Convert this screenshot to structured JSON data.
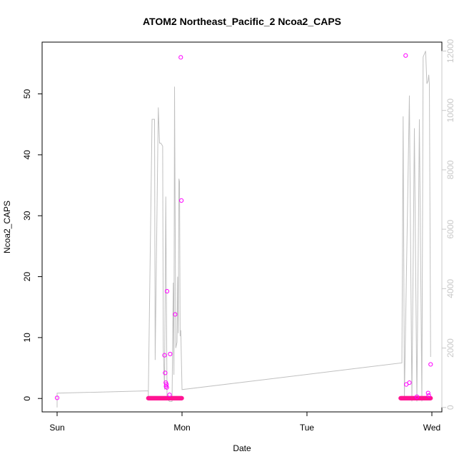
{
  "chart_data": {
    "type": "scatter",
    "title": "ATOM2 Northeast_Pacific_2 Ncoa2_CAPS",
    "xlabel": "Date",
    "ylabel": "Ncoa2_CAPS",
    "x_ticks": [
      "Sun",
      "Mon",
      "Tue",
      "Wed"
    ],
    "y_ticks": [
      0,
      10,
      20,
      30,
      40,
      50
    ],
    "y2_ticks": [
      0,
      2000,
      4000,
      6000,
      8000,
      10000,
      12000
    ],
    "xlim": [
      -0.12,
      3.08
    ],
    "ylim": [
      -2.2,
      58.5
    ],
    "y2lim": [
      -150,
      12300
    ],
    "grid": false,
    "colors": {
      "points": "#ff00ff",
      "points_dense": "#ff1493",
      "line": "#c0c0c0",
      "right_axis": "#c8c8c8"
    },
    "series": [
      {
        "kind": "scatter",
        "x_units": "days since Sunday",
        "points": [
          [
            0.0,
            0.1
          ],
          [
            0.86,
            7.1
          ],
          [
            0.865,
            4.2
          ],
          [
            0.87,
            2.6
          ],
          [
            0.872,
            2.0
          ],
          [
            0.875,
            2.3
          ],
          [
            0.878,
            1.8
          ],
          [
            0.88,
            17.6
          ],
          [
            0.9,
            0.6
          ],
          [
            0.905,
            7.3
          ],
          [
            0.945,
            13.8
          ],
          [
            0.99,
            56.0
          ],
          [
            0.995,
            32.5
          ],
          [
            2.79,
            56.3
          ],
          [
            2.795,
            2.3
          ],
          [
            2.82,
            2.6
          ],
          [
            2.88,
            0.3
          ],
          [
            2.97,
            0.9
          ],
          [
            2.975,
            0.5
          ],
          [
            2.99,
            5.6
          ]
        ],
        "baseline_runs": [
          [
            0.73,
            1.0
          ],
          [
            2.75,
            2.99
          ]
        ]
      },
      {
        "kind": "line",
        "axis": "right",
        "points": [
          [
            0.0,
            0.0
          ],
          [
            0.0,
            480
          ],
          [
            0.73,
            560
          ],
          [
            0.73,
            380
          ],
          [
            0.76,
            9700
          ],
          [
            0.78,
            9700
          ],
          [
            0.785,
            1600
          ],
          [
            0.81,
            10100
          ],
          [
            0.82,
            8900
          ],
          [
            0.83,
            8900
          ],
          [
            0.845,
            8800
          ],
          [
            0.85,
            2000
          ],
          [
            0.86,
            600
          ],
          [
            0.87,
            7100
          ],
          [
            0.88,
            300
          ],
          [
            0.9,
            200
          ],
          [
            0.92,
            200
          ],
          [
            0.93,
            4200
          ],
          [
            0.935,
            1100
          ],
          [
            0.94,
            10800
          ],
          [
            0.95,
            2000
          ],
          [
            0.96,
            2200
          ],
          [
            0.965,
            4400
          ],
          [
            0.97,
            2500
          ],
          [
            0.975,
            7700
          ],
          [
            0.98,
            7600
          ],
          [
            0.985,
            2400
          ],
          [
            0.99,
            2600
          ],
          [
            1.0,
            600
          ],
          [
            2.76,
            1500
          ],
          [
            2.77,
            9800
          ],
          [
            2.78,
            300
          ],
          [
            2.82,
            10500
          ],
          [
            2.84,
            200
          ],
          [
            2.86,
            9400
          ],
          [
            2.88,
            200
          ],
          [
            2.9,
            9700
          ],
          [
            2.92,
            200
          ],
          [
            2.93,
            11800
          ],
          [
            2.95,
            12000
          ],
          [
            2.96,
            10900
          ],
          [
            2.97,
            11000
          ],
          [
            2.975,
            11200
          ],
          [
            2.98,
            10900
          ],
          [
            2.99,
            1700
          ]
        ]
      }
    ]
  }
}
